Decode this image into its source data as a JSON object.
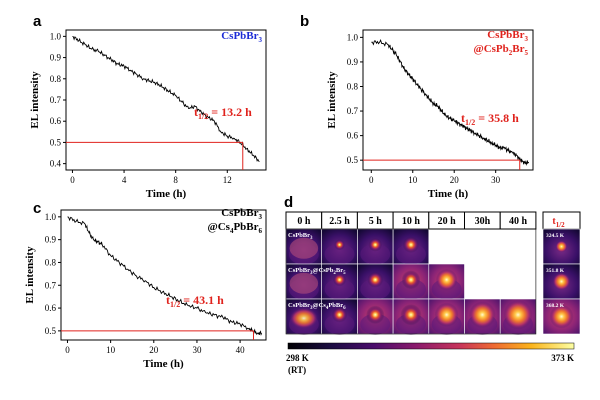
{
  "chart_data": [
    {
      "panel": "a",
      "type": "line",
      "title": "CsPbBr3",
      "title_color": "#1b2bd6",
      "xlabel": "Time (h)",
      "ylabel": "EL intensity",
      "xlim": [
        -0.5,
        15
      ],
      "ylim": [
        0.37,
        1.03
      ],
      "xticks": [
        0,
        4,
        8,
        12
      ],
      "yticks": [
        0.4,
        0.5,
        0.6,
        0.7,
        0.8,
        0.9,
        1.0
      ],
      "ytick_labels": [
        "0.4",
        "0.5",
        "0.6",
        "0.7",
        "0.8",
        "0.9",
        "1.0"
      ],
      "annotation": {
        "text": "t",
        "sub": "1/2",
        "value": " = 13.2 h",
        "x": 13.2,
        "y": 0.5
      },
      "series": [
        {
          "color": "#000000",
          "x": [
            0,
            0.5,
            1,
            1.5,
            2,
            2.5,
            3,
            3.5,
            4,
            4.5,
            5,
            5.5,
            6,
            6.5,
            7,
            7.5,
            8,
            8.5,
            9,
            9.5,
            10,
            10.5,
            11,
            11.5,
            12,
            12.5,
            13,
            13.5,
            14,
            14.5
          ],
          "y": [
            1.0,
            0.98,
            0.96,
            0.94,
            0.93,
            0.91,
            0.89,
            0.87,
            0.86,
            0.84,
            0.82,
            0.8,
            0.79,
            0.78,
            0.76,
            0.74,
            0.72,
            0.69,
            0.66,
            0.67,
            0.64,
            0.62,
            0.6,
            0.55,
            0.53,
            0.52,
            0.5,
            0.47,
            0.44,
            0.41
          ]
        }
      ]
    },
    {
      "panel": "b",
      "type": "line",
      "title_lines": [
        "CsPbBr3",
        "@CsPb2Br5"
      ],
      "title_color": "#e0231d",
      "xlabel": "Time (h)",
      "ylabel": "EL intensity",
      "xlim": [
        -2,
        39
      ],
      "ylim": [
        0.46,
        1.03
      ],
      "xticks": [
        0,
        10,
        20,
        30
      ],
      "yticks": [
        0.5,
        0.6,
        0.7,
        0.8,
        0.9,
        1.0
      ],
      "ytick_labels": [
        "0.5",
        "0.6",
        "0.7",
        "0.8",
        "0.9",
        "1.0"
      ],
      "annotation": {
        "text": "t",
        "sub": "1/2",
        "value": " = 35.8 h",
        "x": 35.8,
        "y": 0.5
      },
      "series": [
        {
          "color": "#000000",
          "x": [
            0,
            2,
            4,
            5,
            6,
            7,
            8,
            9,
            10,
            11,
            12,
            13,
            14,
            15,
            16,
            17,
            18,
            19,
            20,
            21,
            22,
            23,
            24,
            25,
            26,
            27,
            28,
            29,
            30,
            31,
            32,
            33,
            34,
            35,
            36,
            37,
            38
          ],
          "y": [
            0.98,
            0.98,
            0.97,
            0.95,
            0.93,
            0.9,
            0.87,
            0.85,
            0.83,
            0.81,
            0.79,
            0.77,
            0.75,
            0.73,
            0.72,
            0.7,
            0.68,
            0.67,
            0.66,
            0.65,
            0.64,
            0.63,
            0.62,
            0.61,
            0.6,
            0.59,
            0.58,
            0.57,
            0.56,
            0.55,
            0.55,
            0.54,
            0.53,
            0.52,
            0.5,
            0.49,
            0.49
          ]
        }
      ]
    },
    {
      "panel": "c",
      "type": "line",
      "title_lines": [
        "CsPbBr3",
        "@Cs4PbBr6"
      ],
      "title_color": "#000000",
      "xlabel": "Time (h)",
      "ylabel": "EL intensity",
      "xlim": [
        -1.5,
        46
      ],
      "ylim": [
        0.46,
        1.03
      ],
      "xticks": [
        0,
        10,
        20,
        30,
        40
      ],
      "yticks": [
        0.5,
        0.6,
        0.7,
        0.8,
        0.9,
        1.0
      ],
      "ytick_labels": [
        "0.5",
        "0.6",
        "0.7",
        "0.8",
        "0.9",
        "1.0"
      ],
      "annotation": {
        "text": "t",
        "sub": "1/2",
        "value": " = 43.1 h",
        "x": 43.1,
        "y": 0.5
      },
      "series": [
        {
          "color": "#000000",
          "x": [
            0,
            2,
            4,
            5,
            6,
            7,
            8,
            10,
            12,
            14,
            16,
            18,
            20,
            22,
            24,
            26,
            28,
            30,
            32,
            34,
            36,
            38,
            40,
            42,
            43,
            44,
            45
          ],
          "y": [
            1.0,
            0.98,
            0.97,
            0.93,
            0.9,
            0.89,
            0.88,
            0.83,
            0.8,
            0.77,
            0.74,
            0.72,
            0.69,
            0.67,
            0.65,
            0.63,
            0.61,
            0.6,
            0.58,
            0.57,
            0.56,
            0.54,
            0.53,
            0.51,
            0.5,
            0.49,
            0.49
          ]
        }
      ]
    }
  ],
  "panel_d": {
    "letter": "d",
    "columns": [
      "0 h",
      "2.5 h",
      "5 h",
      "10 h",
      "20 h",
      "30h",
      "40 h"
    ],
    "t_half_header": {
      "text": "t",
      "sub": "1/2"
    },
    "rows": [
      {
        "label": "CsPbBr",
        "label_sub": "3",
        "label_rest": "",
        "label_sub2": "",
        "frames": 4,
        "t_half_temp": "324.5 K"
      },
      {
        "label": "CsPbBr",
        "label_sub": "3",
        "label_rest": "@CsPb",
        "label_sub2": "2",
        "label_rest2": "Br",
        "label_sub3": "5",
        "frames": 5,
        "t_half_temp": "351.8 K"
      },
      {
        "label": "CsPbBr",
        "label_sub": "3",
        "label_rest": "@Cs",
        "label_sub2": "4",
        "label_rest2": "PbBr",
        "label_sub3": "6",
        "frames": 7,
        "t_half_temp": "368.2 K"
      }
    ],
    "colorbar": {
      "min_label": "298 K",
      "min_note": "(RT)",
      "max_label": "373 K"
    }
  }
}
